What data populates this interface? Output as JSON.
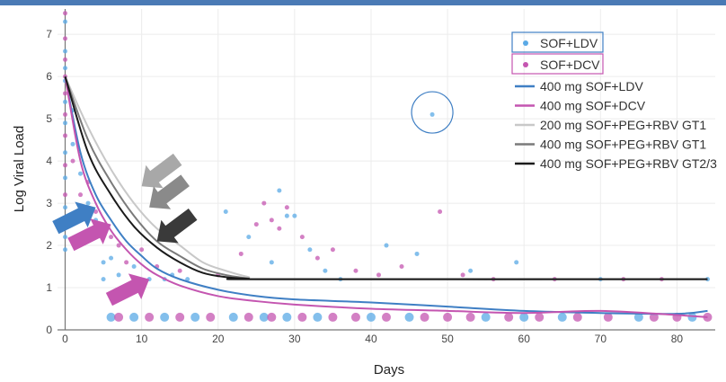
{
  "chart_data": {
    "type": "scatter",
    "xlabel": "Days",
    "ylabel": "Log Viral Load",
    "xlim": [
      -1,
      85
    ],
    "ylim": [
      0,
      7.6
    ],
    "xticks": [
      0,
      10,
      20,
      30,
      40,
      50,
      60,
      70,
      80
    ],
    "yticks": [
      0,
      1,
      2,
      3,
      4,
      5,
      6,
      7
    ],
    "grid": true,
    "legend_position": "top-right",
    "scatter_series": [
      {
        "name": "SOF+LDV",
        "color": "#5aa9e6",
        "points": [
          [
            0,
            7.3
          ],
          [
            0,
            6.6
          ],
          [
            0,
            6.2
          ],
          [
            0,
            5.9
          ],
          [
            0,
            5.4
          ],
          [
            0,
            4.9
          ],
          [
            0,
            4.2
          ],
          [
            0,
            3.6
          ],
          [
            0,
            2.9
          ],
          [
            0,
            2.2
          ],
          [
            0,
            1.9
          ],
          [
            1,
            5.2
          ],
          [
            1,
            4.4
          ],
          [
            2,
            3.7
          ],
          [
            3,
            3.0
          ],
          [
            4,
            2.6
          ],
          [
            5,
            1.6
          ],
          [
            6,
            1.7
          ],
          [
            7,
            1.3
          ],
          [
            9,
            1.5
          ],
          [
            11,
            1.2
          ],
          [
            14,
            1.3
          ],
          [
            16,
            1.2
          ],
          [
            5,
            1.2
          ],
          [
            13,
            1.2
          ],
          [
            21,
            2.8
          ],
          [
            24,
            2.2
          ],
          [
            27,
            1.6
          ],
          [
            28,
            3.3
          ],
          [
            29,
            2.7
          ],
          [
            30,
            2.7
          ],
          [
            32,
            1.9
          ],
          [
            34,
            1.4
          ],
          [
            36,
            1.2
          ],
          [
            42,
            2.0
          ],
          [
            46,
            1.8
          ],
          [
            48,
            5.1
          ],
          [
            53,
            1.4
          ],
          [
            59,
            1.6
          ],
          [
            70,
            1.2
          ],
          [
            84,
            1.2
          ],
          [
            6,
            0.3
          ],
          [
            9,
            0.3
          ],
          [
            13,
            0.3
          ],
          [
            17,
            0.3
          ],
          [
            22,
            0.3
          ],
          [
            26,
            0.3
          ],
          [
            29,
            0.3
          ],
          [
            33,
            0.3
          ],
          [
            40,
            0.3
          ],
          [
            45,
            0.3
          ],
          [
            55,
            0.3
          ],
          [
            60,
            0.3
          ],
          [
            65,
            0.3
          ],
          [
            75,
            0.3
          ],
          [
            82,
            0.3
          ]
        ]
      },
      {
        "name": "SOF+DCV",
        "color": "#c455b0",
        "points": [
          [
            0,
            7.5
          ],
          [
            0,
            6.9
          ],
          [
            0,
            6.4
          ],
          [
            0,
            6.0
          ],
          [
            0,
            5.6
          ],
          [
            0,
            5.1
          ],
          [
            0,
            4.6
          ],
          [
            0,
            3.9
          ],
          [
            0,
            3.2
          ],
          [
            0,
            2.6
          ],
          [
            1,
            4.0
          ],
          [
            2,
            3.2
          ],
          [
            3,
            3.5
          ],
          [
            4,
            2.8
          ],
          [
            5,
            2.4
          ],
          [
            6,
            2.2
          ],
          [
            7,
            2.0
          ],
          [
            8,
            1.6
          ],
          [
            10,
            1.9
          ],
          [
            12,
            1.5
          ],
          [
            15,
            1.4
          ],
          [
            20,
            1.3
          ],
          [
            23,
            1.8
          ],
          [
            25,
            2.5
          ],
          [
            26,
            3.0
          ],
          [
            27,
            2.6
          ],
          [
            28,
            2.4
          ],
          [
            29,
            2.9
          ],
          [
            31,
            2.2
          ],
          [
            33,
            1.7
          ],
          [
            35,
            1.9
          ],
          [
            38,
            1.4
          ],
          [
            41,
            1.3
          ],
          [
            44,
            1.5
          ],
          [
            49,
            2.8
          ],
          [
            52,
            1.3
          ],
          [
            56,
            1.2
          ],
          [
            64,
            1.2
          ],
          [
            73,
            1.2
          ],
          [
            78,
            1.2
          ],
          [
            7,
            0.3
          ],
          [
            11,
            0.3
          ],
          [
            15,
            0.3
          ],
          [
            19,
            0.3
          ],
          [
            24,
            0.3
          ],
          [
            27,
            0.3
          ],
          [
            31,
            0.3
          ],
          [
            35,
            0.3
          ],
          [
            38,
            0.3
          ],
          [
            42,
            0.3
          ],
          [
            47,
            0.3
          ],
          [
            50,
            0.3
          ],
          [
            53,
            0.3
          ],
          [
            58,
            0.3
          ],
          [
            62,
            0.3
          ],
          [
            67,
            0.3
          ],
          [
            71,
            0.3
          ],
          [
            77,
            0.3
          ],
          [
            80,
            0.3
          ],
          [
            84,
            0.3
          ]
        ]
      }
    ],
    "line_series": [
      {
        "name": "400 mg SOF+LDV",
        "color": "#3f7fc4",
        "points": [
          [
            0,
            6.0
          ],
          [
            2,
            4.2
          ],
          [
            4,
            3.2
          ],
          [
            6,
            2.6
          ],
          [
            8,
            2.1
          ],
          [
            10,
            1.75
          ],
          [
            12,
            1.45
          ],
          [
            15,
            1.2
          ],
          [
            20,
            0.95
          ],
          [
            25,
            0.8
          ],
          [
            30,
            0.72
          ],
          [
            40,
            0.65
          ],
          [
            50,
            0.55
          ],
          [
            60,
            0.45
          ],
          [
            70,
            0.4
          ],
          [
            80,
            0.38
          ],
          [
            84,
            0.45
          ]
        ]
      },
      {
        "name": "400 mg SOF+DCV",
        "color": "#c455b0",
        "points": [
          [
            0,
            6.0
          ],
          [
            2,
            4.0
          ],
          [
            4,
            3.0
          ],
          [
            6,
            2.35
          ],
          [
            8,
            1.9
          ],
          [
            10,
            1.55
          ],
          [
            12,
            1.3
          ],
          [
            15,
            1.05
          ],
          [
            20,
            0.8
          ],
          [
            25,
            0.68
          ],
          [
            30,
            0.6
          ],
          [
            40,
            0.5
          ],
          [
            50,
            0.45
          ],
          [
            60,
            0.4
          ],
          [
            70,
            0.45
          ],
          [
            80,
            0.35
          ],
          [
            84,
            0.3
          ]
        ]
      },
      {
        "name": "200 mg SOF+PEG+RBV GT1",
        "color": "#c8c8c8",
        "points": [
          [
            0,
            6.0
          ],
          [
            3,
            4.8
          ],
          [
            6,
            3.8
          ],
          [
            9,
            3.0
          ],
          [
            12,
            2.4
          ],
          [
            15,
            2.0
          ],
          [
            18,
            1.6
          ],
          [
            21,
            1.4
          ],
          [
            24,
            1.25
          ],
          [
            26,
            1.2
          ],
          [
            84,
            1.2
          ]
        ]
      },
      {
        "name": "400 mg SOF+PEG+RBV GT1",
        "color": "#7a7a7a",
        "points": [
          [
            0,
            6.0
          ],
          [
            3,
            4.5
          ],
          [
            6,
            3.5
          ],
          [
            9,
            2.7
          ],
          [
            12,
            2.1
          ],
          [
            15,
            1.75
          ],
          [
            18,
            1.45
          ],
          [
            21,
            1.3
          ],
          [
            24,
            1.22
          ],
          [
            26,
            1.2
          ],
          [
            84,
            1.2
          ]
        ]
      },
      {
        "name": "400 mg SOF+PEG+RBV GT2/3",
        "color": "#1a1a1a",
        "points": [
          [
            0,
            6.0
          ],
          [
            3,
            4.2
          ],
          [
            6,
            3.2
          ],
          [
            9,
            2.45
          ],
          [
            12,
            1.95
          ],
          [
            15,
            1.6
          ],
          [
            18,
            1.35
          ],
          [
            21,
            1.25
          ],
          [
            24,
            1.21
          ],
          [
            26,
            1.2
          ],
          [
            84,
            1.2
          ]
        ]
      }
    ],
    "annotation_arrows": [
      {
        "name": "arrow-lightgray",
        "color": "#a8a8a8",
        "target": [
          10,
          3.4
        ]
      },
      {
        "name": "arrow-midgray",
        "color": "#8a8a8a",
        "target": [
          11,
          2.9
        ]
      },
      {
        "name": "arrow-darkgray",
        "color": "#3a3a3a",
        "target": [
          12,
          2.1
        ]
      },
      {
        "name": "arrow-blue",
        "color": "#3f7fc4",
        "target": [
          4,
          2.9
        ]
      },
      {
        "name": "arrow-magenta-upper",
        "color": "#c455b0",
        "target": [
          6,
          2.5
        ]
      },
      {
        "name": "arrow-magenta-lower",
        "color": "#c455b0",
        "target": [
          11,
          1.2
        ]
      }
    ],
    "outlier_circle": {
      "color": "#3f7fc4",
      "center": [
        48,
        5.15
      ]
    }
  }
}
